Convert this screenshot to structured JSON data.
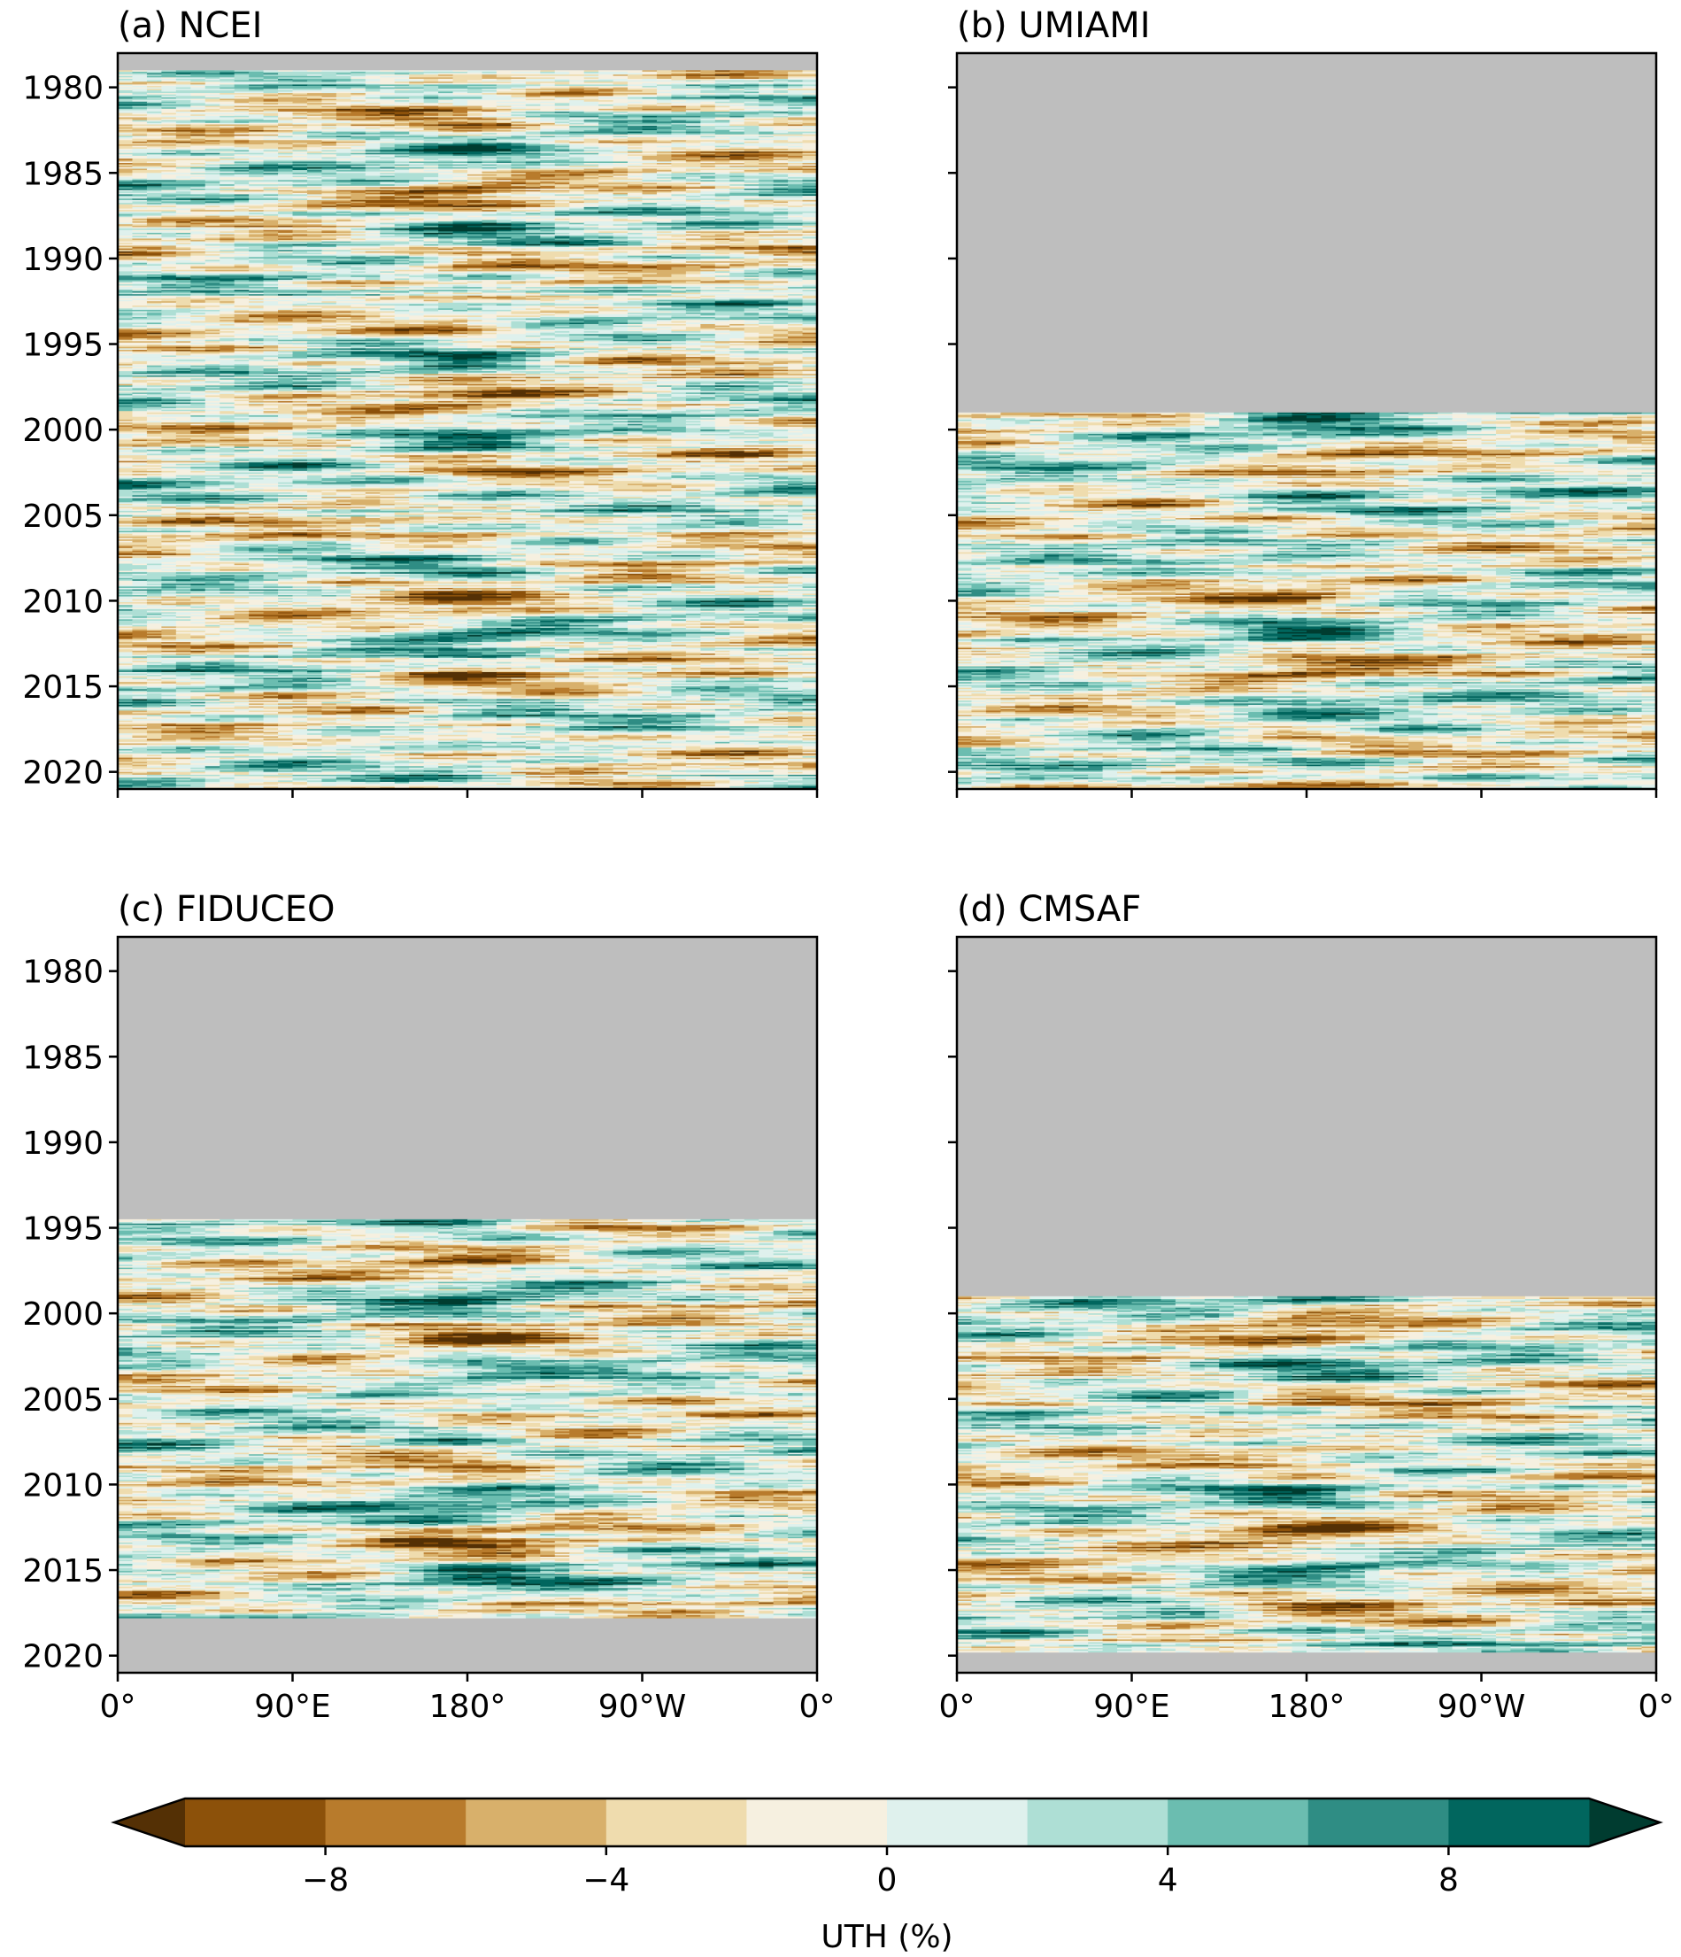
{
  "chart_data": {
    "type": "heatmap",
    "title": "",
    "panels": [
      {
        "id": "a",
        "title": "(a)  NCEI",
        "data_start_year": 1979.0,
        "data_end_year": 2021.0
      },
      {
        "id": "b",
        "title": "(b)  UMIAMI",
        "data_start_year": 1999.0,
        "data_end_year": 2021.0
      },
      {
        "id": "c",
        "title": "(c)  FIDUCEO",
        "data_start_year": 1994.5,
        "data_end_year": 2017.8
      },
      {
        "id": "d",
        "title": "(d)  CMSAF",
        "data_start_year": 1999.0,
        "data_end_year": 2019.8
      }
    ],
    "y_axis": {
      "label": "",
      "range": [
        2021,
        1978
      ],
      "ticks": [
        "1980",
        "1985",
        "1990",
        "1995",
        "2000",
        "2005",
        "2010",
        "2015",
        "2020"
      ]
    },
    "x_axis": {
      "label": "",
      "range": [
        0,
        360
      ],
      "ticks": [
        "0°",
        "90°E",
        "180°",
        "90°W",
        "0°"
      ]
    },
    "missing_data_color": "#bebebe",
    "colorbar": {
      "label": "UTH (%)",
      "levels": [
        -10,
        -8,
        -6,
        -4,
        -2,
        0,
        2,
        4,
        6,
        8,
        10
      ],
      "tick_labels": [
        "−8",
        "−4",
        "0",
        "4",
        "8"
      ],
      "tick_values": [
        -8,
        -4,
        0,
        4,
        8
      ],
      "colors": [
        "#8c510a",
        "#b87b2c",
        "#d8b06b",
        "#efdcae",
        "#f6f0e0",
        "#dff1ed",
        "#aedfd5",
        "#6bbdb0",
        "#2f8d84",
        "#01665e"
      ],
      "extend_low_color": "#543005",
      "extend_high_color": "#003c30",
      "extend": "both"
    }
  }
}
